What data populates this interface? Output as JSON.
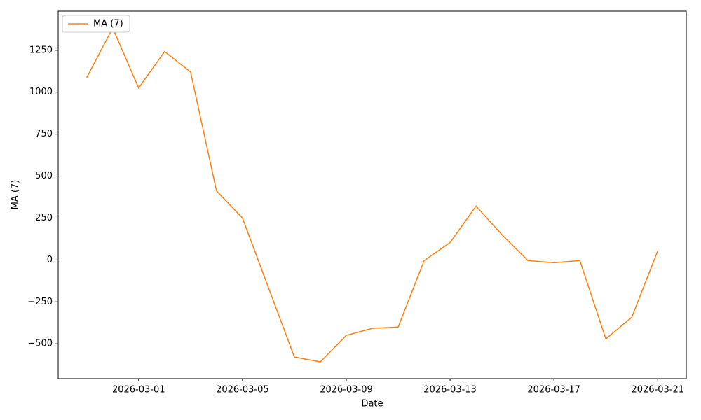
{
  "chart_data": {
    "type": "line",
    "xlabel": "Date",
    "ylabel": "MA (7)",
    "x": [
      "2026-02-27",
      "2026-02-28",
      "2026-03-01",
      "2026-03-02",
      "2026-03-03",
      "2026-03-04",
      "2026-03-05",
      "2026-03-06",
      "2026-03-07",
      "2026-03-08",
      "2026-03-09",
      "2026-03-10",
      "2026-03-11",
      "2026-03-12",
      "2026-03-13",
      "2026-03-14",
      "2026-03-15",
      "2026-03-16",
      "2026-03-17",
      "2026-03-18",
      "2026-03-19",
      "2026-03-20",
      "2026-03-21"
    ],
    "series": [
      {
        "name": "MA (7)",
        "color": "#ff7f0e",
        "values": [
          1087,
          1383,
          1025,
          1242,
          1121,
          412,
          250,
          -165,
          -579,
          -608,
          -450,
          -408,
          -400,
          -4,
          104,
          321,
          150,
          -4,
          -17,
          -4,
          -471,
          -342,
          54
        ]
      }
    ],
    "xlim": [
      "2026-02-25T21:36:00Z",
      "2026-03-22T02:24:00Z"
    ],
    "xticks": [
      "2026-03-01",
      "2026-03-05",
      "2026-03-09",
      "2026-03-13",
      "2026-03-17",
      "2026-03-21"
    ],
    "ylim": [
      -708,
      1483
    ],
    "yticks": [
      {
        "value": -500,
        "label": "−500"
      },
      {
        "value": -250,
        "label": "−250"
      },
      0,
      250,
      500,
      750,
      1000,
      1250
    ],
    "legend": "upper left",
    "grid": false
  }
}
